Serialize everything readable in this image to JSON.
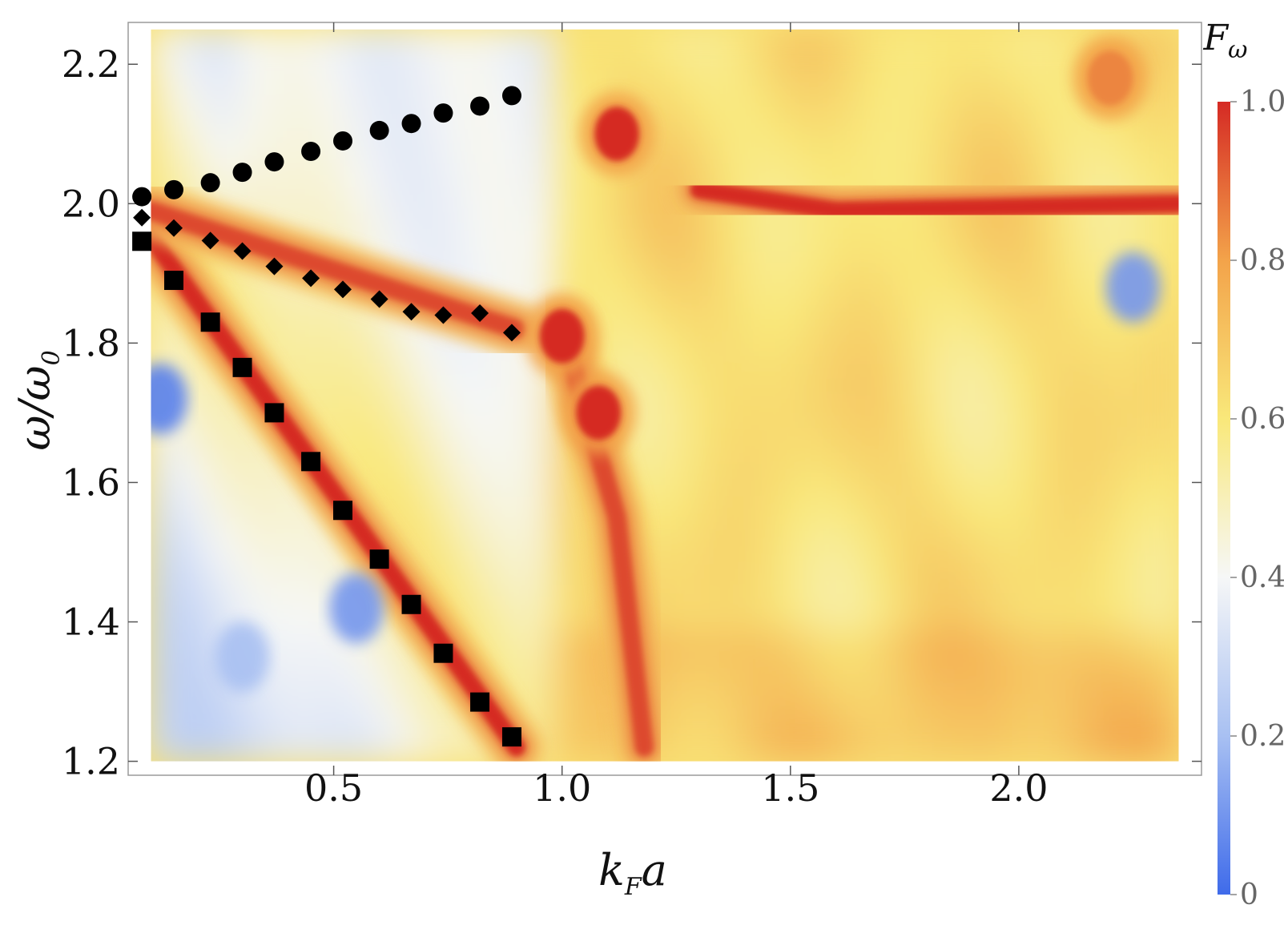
{
  "chart_data": {
    "type": "heatmap",
    "title": "",
    "xlabel": "k",
    "xlabel_sub": "F",
    "xlabel_tail": "a",
    "ylabel": "ω/ω",
    "ylabel_sub": "0",
    "xlim": [
      0.05,
      2.4
    ],
    "ylim": [
      1.18,
      2.26
    ],
    "x_ticks": [
      "0.5",
      "1.0",
      "1.5",
      "2.0"
    ],
    "x_tick_values": [
      0.5,
      1.0,
      1.5,
      2.0
    ],
    "y_ticks": [
      "1.2",
      "1.4",
      "1.6",
      "1.8",
      "2.0",
      "2.2"
    ],
    "y_tick_values": [
      1.2,
      1.4,
      1.6,
      1.8,
      2.0,
      2.2
    ],
    "heatmap_extent": {
      "x": [
        0.1,
        2.35
      ],
      "y": [
        1.2,
        2.25
      ]
    },
    "colorbar": {
      "title": "F",
      "title_sub": "ω",
      "range": [
        0,
        1
      ],
      "ticks": [
        "0",
        "0.2",
        "0.4",
        "0.6",
        "0.8",
        "1.0"
      ],
      "tick_values": [
        0,
        0.2,
        0.4,
        0.6,
        0.8,
        1.0
      ],
      "colors": [
        "#3f6bea",
        "#a8c0f2",
        "#f6f7f7",
        "#f9e87a",
        "#f3a34a",
        "#d52a24"
      ]
    },
    "series": [
      {
        "marker": "circle",
        "x": [
          0.08,
          0.15,
          0.23,
          0.3,
          0.37,
          0.45,
          0.52,
          0.6,
          0.67,
          0.74,
          0.82,
          0.89
        ],
        "y": [
          2.01,
          2.02,
          2.03,
          2.045,
          2.06,
          2.075,
          2.09,
          2.105,
          2.115,
          2.13,
          2.14,
          2.155
        ]
      },
      {
        "marker": "diamond",
        "x": [
          0.08,
          0.15,
          0.23,
          0.3,
          0.37,
          0.45,
          0.52,
          0.6,
          0.67,
          0.74,
          0.82,
          0.89
        ],
        "y": [
          1.98,
          1.965,
          1.947,
          1.932,
          1.91,
          1.893,
          1.877,
          1.863,
          1.845,
          1.84,
          1.843,
          1.815
        ]
      },
      {
        "marker": "square",
        "x": [
          0.08,
          0.15,
          0.23,
          0.3,
          0.37,
          0.45,
          0.52,
          0.6,
          0.67,
          0.74,
          0.82,
          0.89
        ],
        "y": [
          1.946,
          1.89,
          1.83,
          1.765,
          1.7,
          1.63,
          1.56,
          1.49,
          1.425,
          1.355,
          1.285,
          1.235
        ]
      }
    ],
    "heatmap_features": [
      {
        "kind": "ridge",
        "points": [
          [
            0.08,
            1.97
          ],
          [
            0.9,
            1.22
          ]
        ],
        "value": 1.0
      },
      {
        "kind": "ridge",
        "points": [
          [
            0.1,
            1.99
          ],
          [
            0.9,
            1.82
          ]
        ],
        "value": 0.95
      },
      {
        "kind": "ridge",
        "points": [
          [
            1.0,
            1.82
          ],
          [
            1.12,
            1.55
          ],
          [
            1.18,
            1.22
          ]
        ],
        "value": 0.95
      },
      {
        "kind": "ridge",
        "points": [
          [
            1.3,
            2.02
          ],
          [
            1.6,
            1.99
          ],
          [
            2.35,
            2.0
          ]
        ],
        "value": 1.0
      },
      {
        "kind": "blob",
        "center": [
          1.0,
          1.81
        ],
        "value": 1.0
      },
      {
        "kind": "blob",
        "center": [
          1.08,
          1.7
        ],
        "value": 1.0
      },
      {
        "kind": "blob",
        "center": [
          1.12,
          2.1
        ],
        "value": 1.0
      },
      {
        "kind": "blob",
        "center": [
          2.2,
          2.18
        ],
        "value": 0.85
      },
      {
        "kind": "low",
        "center": [
          0.12,
          1.72
        ],
        "value": 0.05
      },
      {
        "kind": "low",
        "center": [
          2.25,
          1.88
        ],
        "value": 0.1
      },
      {
        "kind": "low",
        "center": [
          0.55,
          1.42
        ],
        "value": 0.1
      },
      {
        "kind": "low",
        "center": [
          0.3,
          1.35
        ],
        "value": 0.2
      }
    ]
  }
}
